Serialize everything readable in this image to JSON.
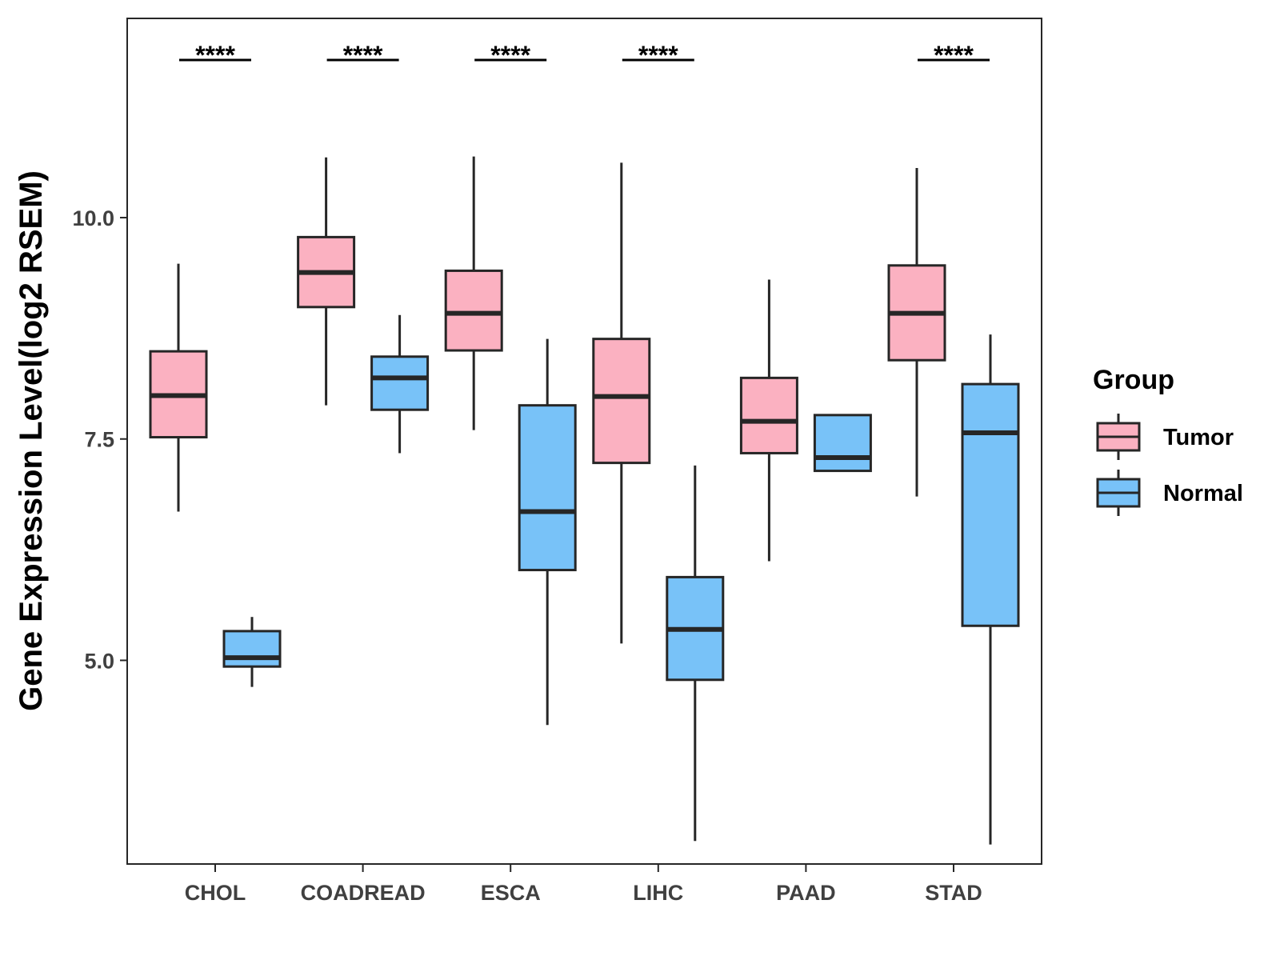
{
  "chart_data": {
    "type": "box",
    "title": "",
    "xlabel": "",
    "ylabel": "Gene Expression Level(log2 RSEM)",
    "ylim": [
      2.7,
      12.25
    ],
    "yticks": [
      {
        "value": 5.0,
        "label": "5.0"
      },
      {
        "value": 7.5,
        "label": "7.5"
      },
      {
        "value": 10.0,
        "label": "10.0"
      }
    ],
    "categories": [
      "CHOL",
      "COADREAD",
      "ESCA",
      "LIHC",
      "PAAD",
      "STAD"
    ],
    "legend": {
      "title": "Group",
      "position": "right"
    },
    "series": [
      {
        "name": "Tumor",
        "color": "#FBB1C1",
        "boxes": [
          {
            "category": "CHOL",
            "whisker_low": 6.68,
            "q1": 7.52,
            "median": 7.99,
            "q3": 8.49,
            "whisker_high": 9.48
          },
          {
            "category": "COADREAD",
            "whisker_low": 7.88,
            "q1": 8.99,
            "median": 9.38,
            "q3": 9.78,
            "whisker_high": 10.68
          },
          {
            "category": "ESCA",
            "whisker_low": 7.6,
            "q1": 8.5,
            "median": 8.92,
            "q3": 9.4,
            "whisker_high": 10.69
          },
          {
            "category": "LIHC",
            "whisker_low": 5.19,
            "q1": 7.23,
            "median": 7.98,
            "q3": 8.63,
            "whisker_high": 10.62
          },
          {
            "category": "PAAD",
            "whisker_low": 6.12,
            "q1": 7.34,
            "median": 7.7,
            "q3": 8.19,
            "whisker_high": 9.3
          },
          {
            "category": "STAD",
            "whisker_low": 6.85,
            "q1": 8.39,
            "median": 8.92,
            "q3": 9.46,
            "whisker_high": 10.56
          }
        ]
      },
      {
        "name": "Normal",
        "color": "#78C2F8",
        "boxes": [
          {
            "category": "CHOL",
            "whisker_low": 4.7,
            "q1": 4.93,
            "median": 5.03,
            "q3": 5.33,
            "whisker_high": 5.49
          },
          {
            "category": "COADREAD",
            "whisker_low": 7.34,
            "q1": 7.83,
            "median": 8.19,
            "q3": 8.43,
            "whisker_high": 8.9
          },
          {
            "category": "ESCA",
            "whisker_low": 4.27,
            "q1": 6.02,
            "median": 6.68,
            "q3": 7.88,
            "whisker_high": 8.63
          },
          {
            "category": "LIHC",
            "whisker_low": 2.96,
            "q1": 4.78,
            "median": 5.35,
            "q3": 5.94,
            "whisker_high": 7.2
          },
          {
            "category": "PAAD",
            "whisker_low": 7.13,
            "q1": 7.14,
            "median": 7.29,
            "q3": 7.77,
            "whisker_high": 7.77
          },
          {
            "category": "STAD",
            "whisker_low": 2.92,
            "q1": 5.39,
            "median": 7.57,
            "q3": 8.12,
            "whisker_high": 8.68
          }
        ]
      }
    ],
    "annotations": [
      {
        "category": "CHOL",
        "label": "****"
      },
      {
        "category": "COADREAD",
        "label": "****"
      },
      {
        "category": "ESCA",
        "label": "****"
      },
      {
        "category": "LIHC",
        "label": "****"
      },
      {
        "category": "STAD",
        "label": "****"
      }
    ],
    "colors": {
      "tumor": "#FBB1C1",
      "normal": "#78C2F8",
      "outline": "#262626",
      "axis_text": "#404040"
    }
  }
}
